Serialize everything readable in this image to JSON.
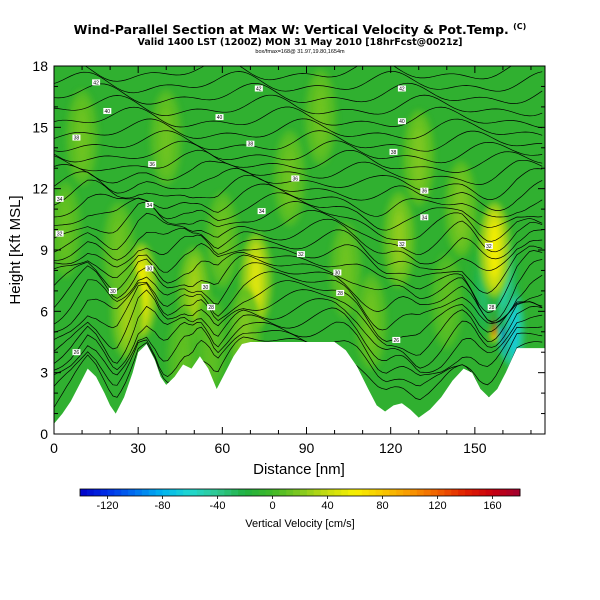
{
  "chart_data": {
    "type": "heatmap",
    "title": "Wind-Parallel Section at Max W: Vertical Velocity & Pot.Temp.",
    "title_mark": "(C)",
    "subtitle": "Valid 1400 LST (1200Z) MON 31 May 2010 [18hrFcst@0021z]",
    "info_line": "box/fmax=168@ 31.97,19.80,1654m",
    "xlabel": "Distance [nm]",
    "ylabel": "Height [Kft MSL]",
    "xlim": [
      0,
      175
    ],
    "ylim": [
      0,
      18
    ],
    "xticks": [
      0,
      30,
      60,
      90,
      120,
      150
    ],
    "yticks": [
      0,
      3,
      6,
      9,
      12,
      15,
      18
    ],
    "colorbar": {
      "label": "Vertical Velocity [cm/s]",
      "ticks": [
        -120,
        -80,
        -40,
        0,
        40,
        80,
        120,
        160
      ],
      "range": [
        -140,
        180
      ],
      "colors": [
        "#0000c8",
        "#0030e8",
        "#0070f0",
        "#00b4f0",
        "#20d8d0",
        "#30c890",
        "#20b040",
        "#40b828",
        "#80c820",
        "#c8dc10",
        "#f8f000",
        "#f8c800",
        "#f89800",
        "#f06000",
        "#e02000",
        "#c80010",
        "#a00030"
      ]
    },
    "terrain_profile": [
      [
        0,
        0.5
      ],
      [
        3,
        1.0
      ],
      [
        6,
        1.6
      ],
      [
        9,
        2.4
      ],
      [
        12,
        3.2
      ],
      [
        15,
        2.8
      ],
      [
        18,
        2.0
      ],
      [
        20,
        1.4
      ],
      [
        22,
        1.0
      ],
      [
        25,
        1.8
      ],
      [
        28,
        3.0
      ],
      [
        30,
        4.0
      ],
      [
        33,
        4.4
      ],
      [
        36,
        3.6
      ],
      [
        38,
        2.8
      ],
      [
        40,
        2.4
      ],
      [
        43,
        2.8
      ],
      [
        46,
        3.4
      ],
      [
        49,
        3.2
      ],
      [
        52,
        3.8
      ],
      [
        55,
        3.2
      ],
      [
        58,
        2.2
      ],
      [
        61,
        3.0
      ],
      [
        64,
        3.8
      ],
      [
        67,
        4.4
      ],
      [
        70,
        4.5
      ],
      [
        85,
        4.5
      ],
      [
        100,
        4.5
      ],
      [
        104,
        4.1
      ],
      [
        108,
        3.3
      ],
      [
        112,
        2.2
      ],
      [
        115,
        1.4
      ],
      [
        118,
        1.1
      ],
      [
        121,
        1.4
      ],
      [
        124,
        1.5
      ],
      [
        127,
        1.2
      ],
      [
        130,
        0.8
      ],
      [
        134,
        1.2
      ],
      [
        138,
        1.8
      ],
      [
        142,
        2.6
      ],
      [
        146,
        3.2
      ],
      [
        149,
        3.0
      ],
      [
        152,
        2.2
      ],
      [
        155,
        1.8
      ],
      [
        158,
        2.2
      ],
      [
        161,
        3.0
      ],
      [
        163,
        3.6
      ],
      [
        165,
        4.2
      ],
      [
        175,
        4.2
      ]
    ],
    "vertical_velocity_anomalies": [
      {
        "x": 157,
        "y": 6.5,
        "peak": 168
      },
      {
        "x": 162,
        "y": 5.5,
        "peak": -130
      },
      {
        "x": 160,
        "y": 7.5,
        "peak": -50
      },
      {
        "x": 164,
        "y": 5.0,
        "peak": -70
      },
      {
        "x": 153,
        "y": 7.0,
        "peak": -30
      },
      {
        "x": 157,
        "y": 9.0,
        "peak": 60
      },
      {
        "x": 31,
        "y": 7.0,
        "peak": 60
      },
      {
        "x": 72,
        "y": 7.5,
        "peak": 50
      },
      {
        "x": 26,
        "y": 6.0,
        "peak": 30
      },
      {
        "x": 50,
        "y": 6.8,
        "peak": 30
      },
      {
        "x": 123,
        "y": 9.5,
        "peak": 25
      },
      {
        "x": 130,
        "y": 13.5,
        "peak": 20
      },
      {
        "x": 10,
        "y": 14.5,
        "peak": 15
      },
      {
        "x": 84,
        "y": 12.5,
        "peak": 15
      },
      {
        "x": 104,
        "y": 8.0,
        "peak": 15
      },
      {
        "x": 40,
        "y": 14.5,
        "peak": 15
      },
      {
        "x": 23,
        "y": 9.0,
        "peak": 15
      },
      {
        "x": 60,
        "y": 9.5,
        "peak": 15
      },
      {
        "x": 95,
        "y": 15.5,
        "peak": 15
      },
      {
        "x": 145,
        "y": 11.0,
        "peak": 20
      },
      {
        "x": 4,
        "y": 10.0,
        "peak": 12
      },
      {
        "x": 113,
        "y": 5.5,
        "peak": 15
      },
      {
        "x": 140,
        "y": 6.5,
        "peak": 10
      },
      {
        "x": 68,
        "y": 4.8,
        "peak": 20
      },
      {
        "x": 46,
        "y": 3.8,
        "peak": 10
      },
      {
        "x": 56,
        "y": 4.4,
        "peak": 10
      }
    ],
    "potential_temperature_labels": [
      {
        "x": 15,
        "y": 17.2,
        "text": "42"
      },
      {
        "x": 73,
        "y": 16.9,
        "text": "42"
      },
      {
        "x": 124,
        "y": 16.9,
        "text": "42"
      },
      {
        "x": 19,
        "y": 15.8,
        "text": "40"
      },
      {
        "x": 59,
        "y": 15.5,
        "text": "40"
      },
      {
        "x": 124,
        "y": 15.3,
        "text": "40"
      },
      {
        "x": 8,
        "y": 14.5,
        "text": "38"
      },
      {
        "x": 70,
        "y": 14.2,
        "text": "38"
      },
      {
        "x": 121,
        "y": 13.8,
        "text": "38"
      },
      {
        "x": 35,
        "y": 13.2,
        "text": "36"
      },
      {
        "x": 86,
        "y": 12.5,
        "text": "36"
      },
      {
        "x": 132,
        "y": 11.9,
        "text": "36"
      },
      {
        "x": 2,
        "y": 11.5,
        "text": "34"
      },
      {
        "x": 34,
        "y": 11.2,
        "text": "34"
      },
      {
        "x": 74,
        "y": 10.9,
        "text": "34"
      },
      {
        "x": 132,
        "y": 10.6,
        "text": "34"
      },
      {
        "x": 2,
        "y": 9.8,
        "text": "32"
      },
      {
        "x": 124,
        "y": 9.3,
        "text": "32"
      },
      {
        "x": 155,
        "y": 9.2,
        "text": "32"
      },
      {
        "x": 88,
        "y": 8.8,
        "text": "32"
      },
      {
        "x": 34,
        "y": 8.1,
        "text": "30"
      },
      {
        "x": 101,
        "y": 7.9,
        "text": "30"
      },
      {
        "x": 21,
        "y": 7.0,
        "text": "30"
      },
      {
        "x": 54,
        "y": 7.2,
        "text": "30"
      },
      {
        "x": 102,
        "y": 6.9,
        "text": "28"
      },
      {
        "x": 56,
        "y": 6.2,
        "text": "28"
      },
      {
        "x": 156,
        "y": 6.2,
        "text": "28"
      },
      {
        "x": 122,
        "y": 4.6,
        "text": "26"
      },
      {
        "x": 8,
        "y": 4.0,
        "text": "26"
      }
    ]
  }
}
